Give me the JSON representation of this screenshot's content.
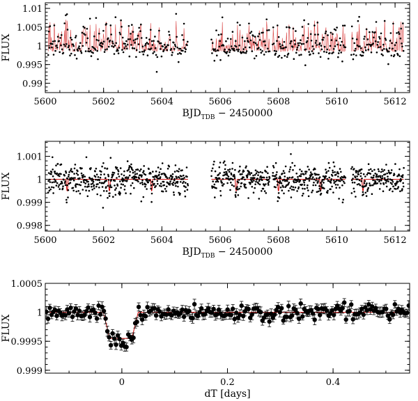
{
  "chart_data": [
    {
      "type": "scatter",
      "title": "",
      "xlabel": "BJD",
      "xlabel_sub": "TDB",
      "xlabel_suffix": " − 2450000",
      "ylabel": "FLUX",
      "xlim": [
        5600,
        5612.5
      ],
      "ylim": [
        0.9875,
        1.0115
      ],
      "xticks": [
        5600,
        5602,
        5604,
        5606,
        5608,
        5610,
        5612
      ],
      "xtick_labels": [
        "5600",
        "5602",
        "5604",
        "5606",
        "5608",
        "5610",
        "5612"
      ],
      "yticks": [
        0.99,
        0.995,
        1.0,
        1.005,
        1.01
      ],
      "ytick_labels": [
        "0.99",
        "0.995",
        "1",
        "1.005",
        "1.01"
      ],
      "segments": [
        [
          5600.1,
          5604.9
        ],
        [
          5605.7,
          5607.7
        ],
        [
          5607.8,
          5610.3
        ],
        [
          5610.5,
          5612.3
        ]
      ],
      "baseline": 0.9985,
      "amplitude": 0.0085,
      "noise": 0.0013,
      "cadence_days": 0.0208,
      "series": [
        {
          "name": "observed flux",
          "color": "#000000",
          "style": "points"
        },
        {
          "name": "model",
          "color": "#cc0000",
          "style": "line"
        }
      ]
    },
    {
      "type": "scatter",
      "title": "",
      "xlabel": "BJD",
      "xlabel_sub": "TDB",
      "xlabel_suffix": " − 2450000",
      "ylabel": "FLUX",
      "xlim": [
        5600,
        5612.5
      ],
      "ylim": [
        0.99775,
        1.00165
      ],
      "xticks": [
        5600,
        5602,
        5604,
        5606,
        5608,
        5610,
        5612
      ],
      "xtick_labels": [
        "5600",
        "5602",
        "5604",
        "5606",
        "5608",
        "5610",
        "5612"
      ],
      "yticks": [
        0.998,
        0.999,
        1.0,
        1.001
      ],
      "ytick_labels": [
        "0.998",
        "0.999",
        "1",
        "1.001"
      ],
      "segments": [
        [
          5600.1,
          5604.9
        ],
        [
          5605.7,
          5607.7
        ],
        [
          5607.8,
          5610.3
        ],
        [
          5610.5,
          5612.3
        ]
      ],
      "transit_period_days": 1.45,
      "transit_epoch": 5600.75,
      "transit_depth": 0.0005,
      "noise": 0.00032,
      "cadence_days": 0.0208,
      "series": [
        {
          "name": "detrended flux",
          "color": "#000000",
          "style": "points"
        },
        {
          "name": "transit model",
          "color": "#cc0000",
          "style": "line"
        }
      ]
    },
    {
      "type": "scatter",
      "title": "",
      "xlabel": "dT [days]",
      "ylabel": "FLUX",
      "xlim": [
        -0.145,
        0.545
      ],
      "ylim": [
        0.99895,
        1.0005
      ],
      "xticks": [
        0,
        0.2,
        0.4
      ],
      "xtick_labels": [
        "0",
        "0.2",
        "0.4"
      ],
      "yticks": [
        0.999,
        0.9995,
        1.0,
        1.0005
      ],
      "ytick_labels": [
        "0.999",
        "0.9995",
        "1",
        "1.0005"
      ],
      "transit_center": -0.002,
      "transit_depth": 0.00045,
      "transit_half_width": 0.033,
      "bin_width_days": 0.0033,
      "series": [
        {
          "name": "phase-folded binned flux",
          "color": "#000000",
          "style": "errorbar-points"
        },
        {
          "name": "transit model",
          "color": "#cc0000",
          "style": "line"
        }
      ]
    }
  ]
}
